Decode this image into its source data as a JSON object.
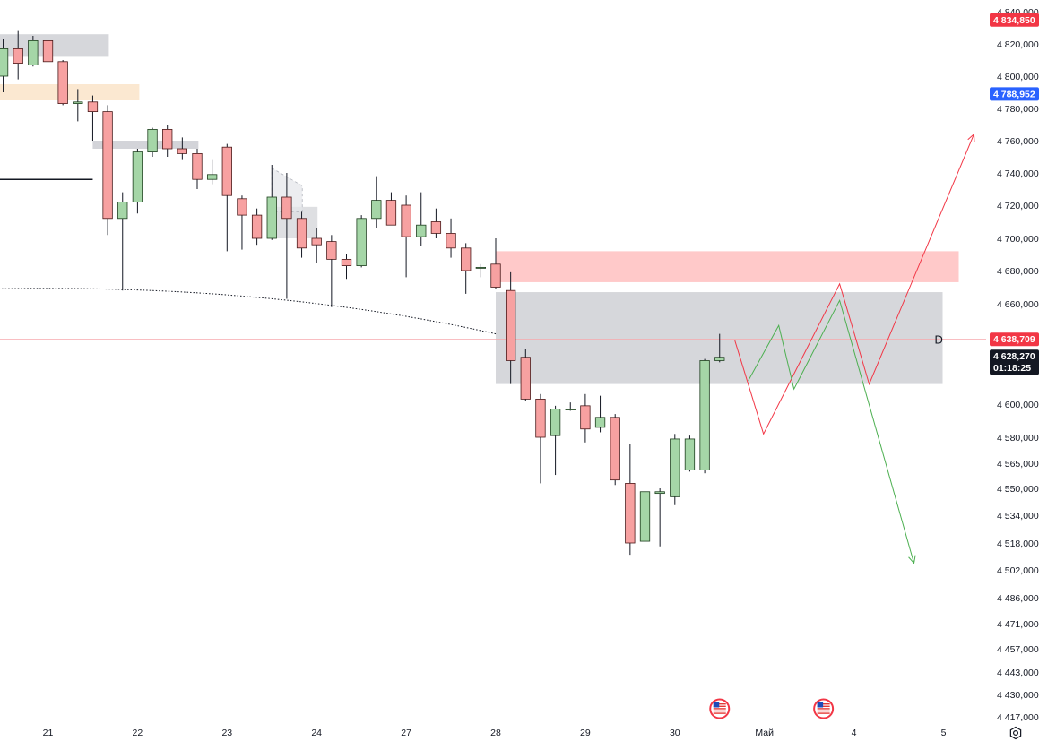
{
  "chart_data": {
    "type": "candlestick",
    "y_axis": {
      "ticks": [
        "4 840,000",
        "4 820,000",
        "4 800,000",
        "4 780,000",
        "4 760,000",
        "4 740,000",
        "4 720,000",
        "4 700,000",
        "4 680,000",
        "4 660,000",
        "4 600,000",
        "4 580,000",
        "4 565,000",
        "4 550,000",
        "4 534,000",
        "4 518,000",
        "4 502,000",
        "4 486,000",
        "4 471,000",
        "4 457,000",
        "4 443,000",
        "4 430,000",
        "4 417,000"
      ],
      "scale": "log"
    },
    "x_axis": {
      "ticks": [
        {
          "label": "21",
          "day": 0
        },
        {
          "label": "22",
          "day": 1
        },
        {
          "label": "23",
          "day": 2
        },
        {
          "label": "24",
          "day": 3
        },
        {
          "label": "27",
          "day": 4
        },
        {
          "label": "28",
          "day": 5
        },
        {
          "label": "29",
          "day": 6
        },
        {
          "label": "30",
          "day": 7
        },
        {
          "label": "Май",
          "day": 8
        },
        {
          "label": "4",
          "day": 9
        },
        {
          "label": "5",
          "day": 10
        }
      ],
      "bars_per_day": 6,
      "first_bar_day": -0.5
    },
    "candles": [
      {
        "o": 4800,
        "h": 4823,
        "l": 4790,
        "c": 4817
      },
      {
        "o": 4817,
        "h": 4828,
        "l": 4798,
        "c": 4808
      },
      {
        "o": 4807,
        "h": 4825,
        "l": 4806,
        "c": 4822
      },
      {
        "o": 4822,
        "h": 4832,
        "l": 4804,
        "c": 4809
      },
      {
        "o": 4809,
        "h": 4810,
        "l": 4782,
        "c": 4783
      },
      {
        "o": 4783,
        "h": 4792,
        "l": 4772,
        "c": 4784
      },
      {
        "o": 4784,
        "h": 4788,
        "l": 4760,
        "c": 4778
      },
      {
        "o": 4778,
        "h": 4782,
        "l": 4702,
        "c": 4712
      },
      {
        "o": 4712,
        "h": 4728,
        "l": 4668,
        "c": 4722
      },
      {
        "o": 4722,
        "h": 4755,
        "l": 4715,
        "c": 4753
      },
      {
        "o": 4753,
        "h": 4768,
        "l": 4750,
        "c": 4767
      },
      {
        "o": 4767,
        "h": 4770,
        "l": 4750,
        "c": 4755
      },
      {
        "o": 4755,
        "h": 4762,
        "l": 4748,
        "c": 4752
      },
      {
        "o": 4752,
        "h": 4755,
        "l": 4730,
        "c": 4736
      },
      {
        "o": 4736,
        "h": 4748,
        "l": 4733,
        "c": 4739
      },
      {
        "o": 4756,
        "h": 4758,
        "l": 4692,
        "c": 4726
      },
      {
        "o": 4724,
        "h": 4726,
        "l": 4693,
        "c": 4714
      },
      {
        "o": 4714,
        "h": 4718,
        "l": 4696,
        "c": 4700
      },
      {
        "o": 4700,
        "h": 4745,
        "l": 4699,
        "c": 4725
      },
      {
        "o": 4725,
        "h": 4740,
        "l": 4663,
        "c": 4712
      },
      {
        "o": 4712,
        "h": 4716,
        "l": 4688,
        "c": 4694
      },
      {
        "o": 4700,
        "h": 4706,
        "l": 4685,
        "c": 4696
      },
      {
        "o": 4698,
        "h": 4702,
        "l": 4658,
        "c": 4687
      },
      {
        "o": 4687,
        "h": 4690,
        "l": 4675,
        "c": 4683
      },
      {
        "o": 4683,
        "h": 4714,
        "l": 4682,
        "c": 4712
      },
      {
        "o": 4712,
        "h": 4738,
        "l": 4706,
        "c": 4723
      },
      {
        "o": 4723,
        "h": 4728,
        "l": 4708,
        "c": 4708
      },
      {
        "o": 4720,
        "h": 4726,
        "l": 4676,
        "c": 4701
      },
      {
        "o": 4701,
        "h": 4728,
        "l": 4695,
        "c": 4708
      },
      {
        "o": 4710,
        "h": 4718,
        "l": 4700,
        "c": 4703
      },
      {
        "o": 4703,
        "h": 4712,
        "l": 4688,
        "c": 4694
      },
      {
        "o": 4694,
        "h": 4697,
        "l": 4666,
        "c": 4680
      },
      {
        "o": 4682,
        "h": 4684,
        "l": 4676,
        "c": 4682
      },
      {
        "o": 4684,
        "h": 4700,
        "l": 4669,
        "c": 4670
      },
      {
        "o": 4668,
        "h": 4679,
        "l": 4612,
        "c": 4626
      },
      {
        "o": 4628,
        "h": 4633,
        "l": 4602,
        "c": 4603
      },
      {
        "o": 4603,
        "h": 4606,
        "l": 4553,
        "c": 4580
      },
      {
        "o": 4581,
        "h": 4599,
        "l": 4558,
        "c": 4597
      },
      {
        "o": 4597,
        "h": 4601,
        "l": 4596,
        "c": 4597
      },
      {
        "o": 4599,
        "h": 4606,
        "l": 4577,
        "c": 4585
      },
      {
        "o": 4586,
        "h": 4605,
        "l": 4583,
        "c": 4592
      },
      {
        "o": 4592,
        "h": 4594,
        "l": 4552,
        "c": 4555
      },
      {
        "o": 4553,
        "h": 4576,
        "l": 4511,
        "c": 4518
      },
      {
        "o": 4519,
        "h": 4561,
        "l": 4517,
        "c": 4548
      },
      {
        "o": 4547,
        "h": 4550,
        "l": 4516,
        "c": 4548
      },
      {
        "o": 4545,
        "h": 4582,
        "l": 4540,
        "c": 4579
      },
      {
        "o": 4561,
        "h": 4581,
        "l": 4560,
        "c": 4579
      },
      {
        "o": 4561,
        "h": 4627,
        "l": 4559,
        "c": 4626
      },
      {
        "o": 4626,
        "h": 4642,
        "l": 4625,
        "c": 4628
      }
    ],
    "price_tags": [
      {
        "label": "4 834,850",
        "value": 4834.85,
        "color": "#f23645"
      },
      {
        "label": "4 788,952",
        "value": 4788.952,
        "color": "#2962ff"
      },
      {
        "label": "4 638,709",
        "value": 4638.709,
        "color": "#f23645"
      },
      {
        "label": "4 628,270",
        "sublabel": "01:18:25",
        "value": 4628.27,
        "color": "#131722"
      }
    ],
    "annotations": [
      {
        "type": "label",
        "text": "D",
        "day": 9.9,
        "value": 4638.709
      }
    ],
    "colors": {
      "up_fill": "#a5d6a7",
      "up_border": "#1e3f1f",
      "down_fill": "#f7a1a1",
      "down_border": "#4a1a1a",
      "projection_red": "#f23645",
      "projection_green": "#4caf50",
      "zone_gray": "#c8c9cf",
      "zone_red": "#ffc9c9",
      "zone_orange": "#fbe6cc"
    },
    "icons": [
      "us-flag-event-icon",
      "us-flag-event-icon",
      "settings-icon"
    ]
  }
}
